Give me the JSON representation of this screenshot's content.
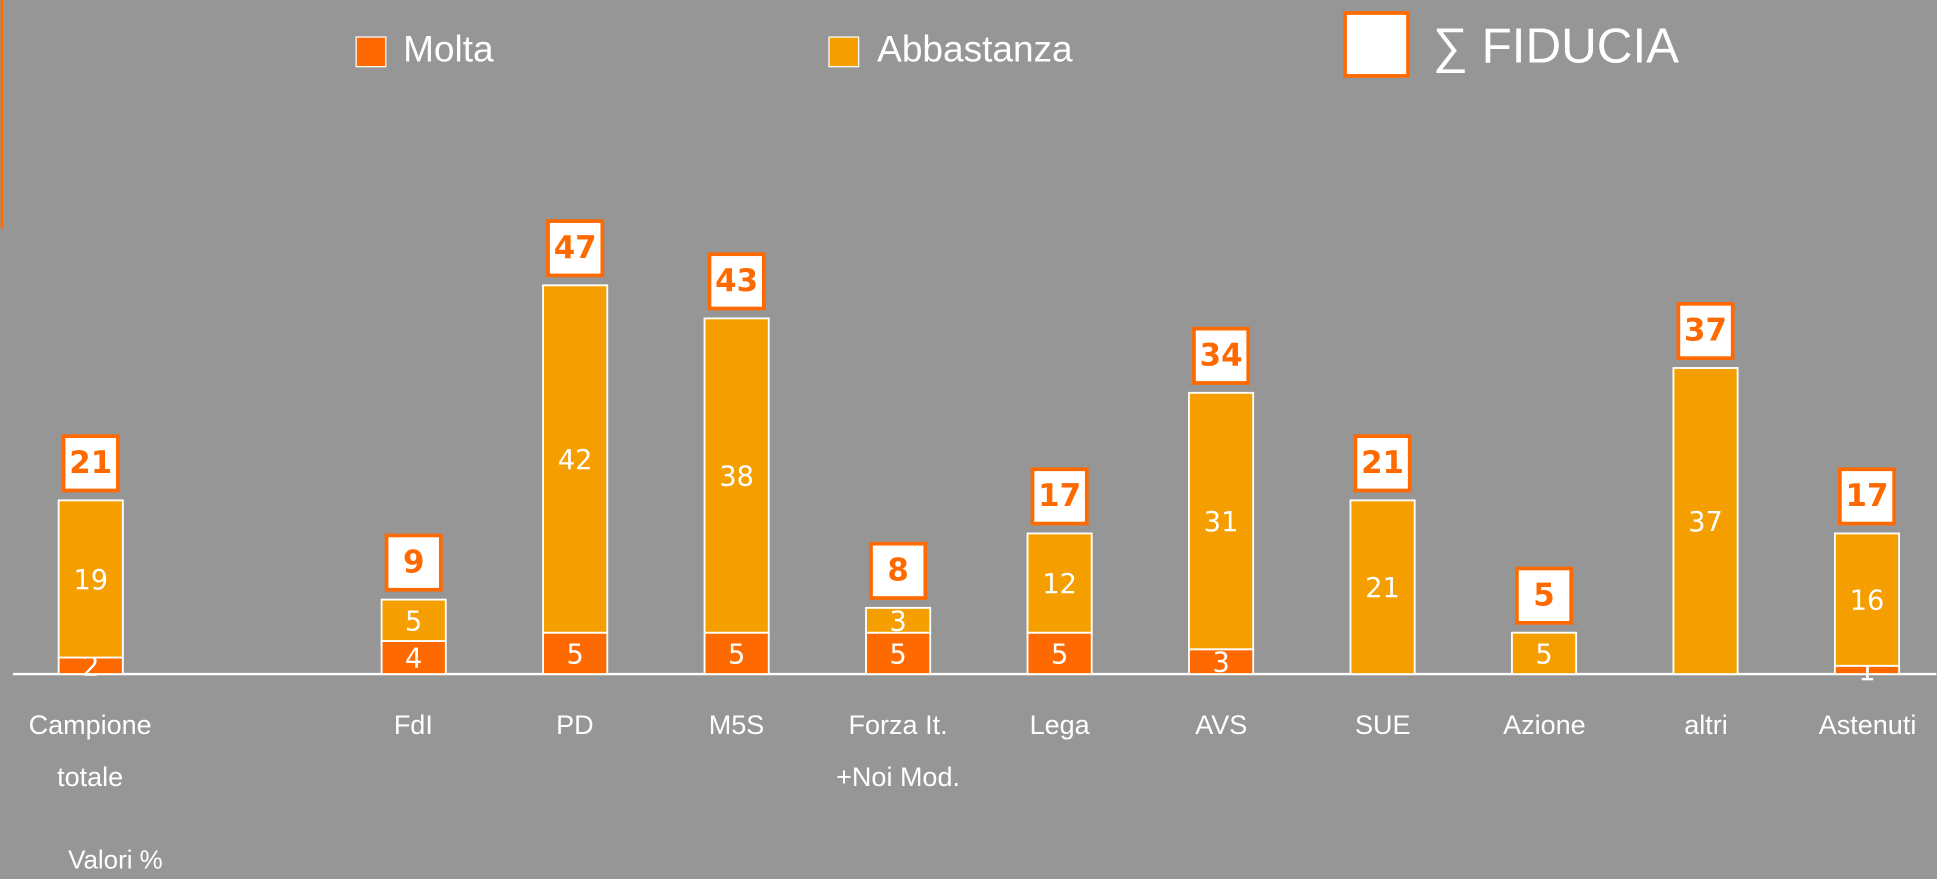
{
  "chart_data": {
    "type": "stacked_bar",
    "categories": [
      "Campione totale",
      null,
      "FdI",
      "PD",
      "M5S",
      "Forza It. +Noi Mod.",
      "Lega",
      "AVS",
      "SUE",
      "Azione",
      "altri",
      "Astenuti"
    ],
    "series": [
      {
        "name": "Molta",
        "color": "#ff6a00",
        "values": [
          2,
          null,
          4,
          5,
          5,
          5,
          5,
          3,
          null,
          null,
          null,
          1
        ]
      },
      {
        "name": "Abbastanza",
        "color": "#f59e00",
        "values": [
          19,
          null,
          5,
          42,
          38,
          3,
          12,
          31,
          21,
          5,
          37,
          16
        ]
      },
      {
        "name": "∑ FIDUCIA",
        "color": "#ffffff",
        "values": [
          21,
          null,
          9,
          47,
          43,
          8,
          17,
          34,
          21,
          5,
          37,
          17
        ]
      }
    ],
    "annotation": "Valori %"
  }
}
